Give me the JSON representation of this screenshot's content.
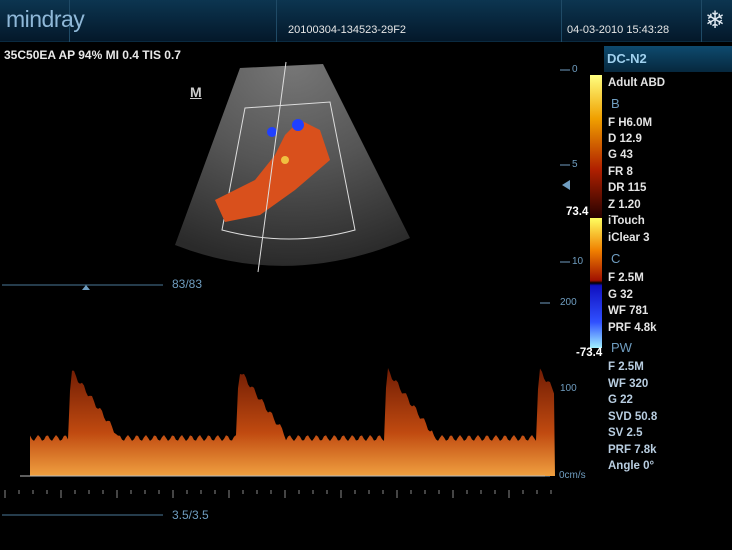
{
  "header": {
    "logo": "mindray",
    "exam_id": "20100304-134523-29F2",
    "datetime": "04-03-2010 15:43:28",
    "freeze_icon": "snowflake-icon"
  },
  "params": "35C50EA  AP 94%  MI 0.4  TIS 0.7",
  "mode": "DC-N2",
  "marker": "M",
  "b_mode": {
    "preset": "Adult ABD",
    "header": "B",
    "items": [
      "F H6.0M",
      "D 12.9",
      "G 43",
      "FR 8",
      "DR 115",
      "Z 1.20",
      "iTouch",
      "iClear 3"
    ]
  },
  "c_mode": {
    "header": "C",
    "items": [
      "F 2.5M",
      "G 32",
      "WF 781",
      "PRF 4.8k"
    ],
    "scale_max": "73.4",
    "scale_min": "-73.4"
  },
  "pw_mode": {
    "header": "PW",
    "items": [
      "F 2.5M",
      "WF 320",
      "G 22",
      "SVD 50.8",
      "SV 2.5",
      "PRF 7.8k",
      "Angle 0°"
    ]
  },
  "depth_scale": {
    "labels": [
      "0",
      "5",
      "10"
    ]
  },
  "velocity_scale": {
    "labels": [
      "200",
      "100",
      "0cm/s"
    ]
  },
  "cine": {
    "upper": "83/83",
    "lower": "3.5/3.5"
  },
  "colors": {
    "accent": "#6f9dc0",
    "doppler": "#e0661a"
  }
}
